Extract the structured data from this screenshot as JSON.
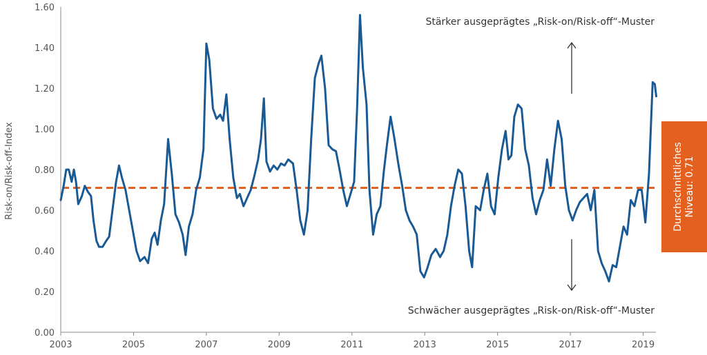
{
  "chart_data": {
    "type": "line",
    "title": "",
    "xlabel": "",
    "ylabel": "Risk-on/Risk-off-Index",
    "xlim": [
      2003,
      2019.35
    ],
    "ylim": [
      0,
      1.6
    ],
    "x_ticks": [
      "2003",
      "2005",
      "2007",
      "2009",
      "2011",
      "2013",
      "2015",
      "2017",
      "2019"
    ],
    "y_ticks": [
      "0.00",
      "0.20",
      "0.40",
      "0.60",
      "0.80",
      "1.00",
      "1.20",
      "1.40",
      "1.60"
    ],
    "grid": false,
    "series": [
      {
        "color": "#1a5a94",
        "points": [
          [
            2003.0,
            0.65
          ],
          [
            2003.08,
            0.72
          ],
          [
            2003.15,
            0.8
          ],
          [
            2003.22,
            0.8
          ],
          [
            2003.3,
            0.74
          ],
          [
            2003.36,
            0.8
          ],
          [
            2003.42,
            0.74
          ],
          [
            2003.48,
            0.63
          ],
          [
            2003.58,
            0.67
          ],
          [
            2003.66,
            0.72
          ],
          [
            2003.75,
            0.69
          ],
          [
            2003.83,
            0.67
          ],
          [
            2003.9,
            0.55
          ],
          [
            2003.98,
            0.45
          ],
          [
            2004.05,
            0.42
          ],
          [
            2004.15,
            0.42
          ],
          [
            2004.25,
            0.45
          ],
          [
            2004.33,
            0.47
          ],
          [
            2004.42,
            0.6
          ],
          [
            2004.52,
            0.74
          ],
          [
            2004.6,
            0.82
          ],
          [
            2004.68,
            0.76
          ],
          [
            2004.78,
            0.7
          ],
          [
            2004.88,
            0.6
          ],
          [
            2004.98,
            0.5
          ],
          [
            2005.08,
            0.4
          ],
          [
            2005.18,
            0.35
          ],
          [
            2005.3,
            0.37
          ],
          [
            2005.4,
            0.34
          ],
          [
            2005.5,
            0.46
          ],
          [
            2005.58,
            0.49
          ],
          [
            2005.66,
            0.43
          ],
          [
            2005.75,
            0.55
          ],
          [
            2005.84,
            0.63
          ],
          [
            2005.95,
            0.95
          ],
          [
            2006.05,
            0.78
          ],
          [
            2006.15,
            0.58
          ],
          [
            2006.25,
            0.54
          ],
          [
            2006.35,
            0.48
          ],
          [
            2006.43,
            0.38
          ],
          [
            2006.52,
            0.52
          ],
          [
            2006.62,
            0.58
          ],
          [
            2006.72,
            0.7
          ],
          [
            2006.82,
            0.76
          ],
          [
            2006.92,
            0.9
          ],
          [
            2007.0,
            1.42
          ],
          [
            2007.08,
            1.34
          ],
          [
            2007.18,
            1.1
          ],
          [
            2007.28,
            1.05
          ],
          [
            2007.38,
            1.07
          ],
          [
            2007.46,
            1.04
          ],
          [
            2007.55,
            1.17
          ],
          [
            2007.64,
            0.95
          ],
          [
            2007.74,
            0.76
          ],
          [
            2007.84,
            0.66
          ],
          [
            2007.92,
            0.68
          ],
          [
            2008.02,
            0.62
          ],
          [
            2008.12,
            0.66
          ],
          [
            2008.22,
            0.7
          ],
          [
            2008.32,
            0.77
          ],
          [
            2008.42,
            0.85
          ],
          [
            2008.5,
            0.95
          ],
          [
            2008.58,
            1.15
          ],
          [
            2008.65,
            0.84
          ],
          [
            2008.75,
            0.79
          ],
          [
            2008.85,
            0.82
          ],
          [
            2008.95,
            0.8
          ],
          [
            2009.05,
            0.83
          ],
          [
            2009.15,
            0.82
          ],
          [
            2009.25,
            0.85
          ],
          [
            2009.38,
            0.83
          ],
          [
            2009.48,
            0.7
          ],
          [
            2009.58,
            0.55
          ],
          [
            2009.68,
            0.48
          ],
          [
            2009.78,
            0.6
          ],
          [
            2009.88,
            0.95
          ],
          [
            2009.98,
            1.25
          ],
          [
            2010.08,
            1.32
          ],
          [
            2010.16,
            1.36
          ],
          [
            2010.26,
            1.2
          ],
          [
            2010.36,
            0.92
          ],
          [
            2010.46,
            0.9
          ],
          [
            2010.56,
            0.89
          ],
          [
            2010.66,
            0.8
          ],
          [
            2010.76,
            0.7
          ],
          [
            2010.86,
            0.62
          ],
          [
            2010.96,
            0.68
          ],
          [
            2011.06,
            0.74
          ],
          [
            2011.14,
            1.1
          ],
          [
            2011.22,
            1.56
          ],
          [
            2011.3,
            1.3
          ],
          [
            2011.4,
            1.12
          ],
          [
            2011.48,
            0.7
          ],
          [
            2011.58,
            0.48
          ],
          [
            2011.68,
            0.58
          ],
          [
            2011.78,
            0.62
          ],
          [
            2011.88,
            0.8
          ],
          [
            2011.96,
            0.92
          ],
          [
            2012.06,
            1.06
          ],
          [
            2012.16,
            0.96
          ],
          [
            2012.28,
            0.82
          ],
          [
            2012.38,
            0.72
          ],
          [
            2012.48,
            0.6
          ],
          [
            2012.58,
            0.55
          ],
          [
            2012.68,
            0.52
          ],
          [
            2012.78,
            0.48
          ],
          [
            2012.88,
            0.3
          ],
          [
            2012.98,
            0.27
          ],
          [
            2013.08,
            0.32
          ],
          [
            2013.18,
            0.38
          ],
          [
            2013.3,
            0.41
          ],
          [
            2013.42,
            0.37
          ],
          [
            2013.52,
            0.4
          ],
          [
            2013.62,
            0.48
          ],
          [
            2013.72,
            0.62
          ],
          [
            2013.82,
            0.72
          ],
          [
            2013.92,
            0.8
          ],
          [
            2014.02,
            0.78
          ],
          [
            2014.12,
            0.62
          ],
          [
            2014.22,
            0.4
          ],
          [
            2014.3,
            0.32
          ],
          [
            2014.4,
            0.62
          ],
          [
            2014.52,
            0.6
          ],
          [
            2014.62,
            0.7
          ],
          [
            2014.72,
            0.78
          ],
          [
            2014.82,
            0.62
          ],
          [
            2014.92,
            0.58
          ],
          [
            2015.02,
            0.76
          ],
          [
            2015.12,
            0.9
          ],
          [
            2015.22,
            0.99
          ],
          [
            2015.3,
            0.85
          ],
          [
            2015.38,
            0.87
          ],
          [
            2015.46,
            1.06
          ],
          [
            2015.56,
            1.12
          ],
          [
            2015.66,
            1.1
          ],
          [
            2015.76,
            0.9
          ],
          [
            2015.86,
            0.82
          ],
          [
            2015.96,
            0.66
          ],
          [
            2016.06,
            0.58
          ],
          [
            2016.16,
            0.65
          ],
          [
            2016.26,
            0.7
          ],
          [
            2016.36,
            0.85
          ],
          [
            2016.46,
            0.72
          ],
          [
            2016.56,
            0.9
          ],
          [
            2016.66,
            1.04
          ],
          [
            2016.76,
            0.95
          ],
          [
            2016.86,
            0.72
          ],
          [
            2016.96,
            0.6
          ],
          [
            2017.06,
            0.55
          ],
          [
            2017.16,
            0.6
          ],
          [
            2017.26,
            0.64
          ],
          [
            2017.36,
            0.66
          ],
          [
            2017.46,
            0.68
          ],
          [
            2017.56,
            0.6
          ],
          [
            2017.66,
            0.7
          ],
          [
            2017.76,
            0.4
          ],
          [
            2017.86,
            0.34
          ],
          [
            2017.96,
            0.3
          ],
          [
            2018.06,
            0.25
          ],
          [
            2018.16,
            0.33
          ],
          [
            2018.26,
            0.32
          ],
          [
            2018.36,
            0.42
          ],
          [
            2018.46,
            0.52
          ],
          [
            2018.56,
            0.48
          ],
          [
            2018.66,
            0.65
          ],
          [
            2018.76,
            0.62
          ],
          [
            2018.86,
            0.7
          ],
          [
            2018.96,
            0.7
          ],
          [
            2019.06,
            0.54
          ],
          [
            2019.16,
            0.78
          ],
          [
            2019.26,
            1.23
          ],
          [
            2019.32,
            1.22
          ],
          [
            2019.36,
            1.16
          ]
        ]
      }
    ],
    "reference_line": {
      "value": 0.71,
      "color": "#e3601e",
      "style": "dashed"
    },
    "annotations": {
      "top": "Stärker ausgeprägtes „Risk-on/Risk-off“-Muster",
      "bottom": "Schwächer ausgeprägtes „Risk-on/Risk-off“-Muster"
    },
    "average_box": {
      "line1": "Durchschnittliches",
      "line2": "Niveau: 0.71",
      "color": "#e3601e"
    }
  }
}
